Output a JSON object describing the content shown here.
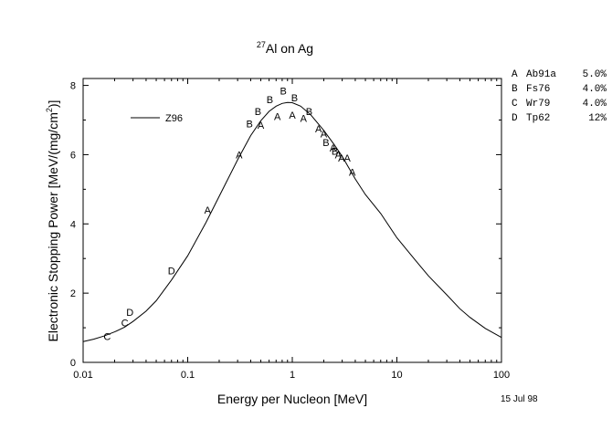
{
  "chart_data": {
    "type": "scatter",
    "title_sup": "27",
    "title_main": "Al on Ag",
    "xlabel": "Energy per Nucleon [MeV]",
    "ylabel_main": "Electronic Stopping Power [MeV/(mg/cm",
    "ylabel_sup": "2",
    "ylabel_end": ")]",
    "x_scale": "log",
    "xlim": [
      0.01,
      100
    ],
    "ylim": [
      0,
      8.2
    ],
    "x_ticks": [
      {
        "v": 0.01,
        "label": "0.01"
      },
      {
        "v": 0.1,
        "label": "0.1"
      },
      {
        "v": 1,
        "label": "1"
      },
      {
        "v": 10,
        "label": "10"
      },
      {
        "v": 100,
        "label": "100"
      }
    ],
    "y_ticks": [
      {
        "v": 0,
        "label": "0"
      },
      {
        "v": 2,
        "label": "2"
      },
      {
        "v": 4,
        "label": "4"
      },
      {
        "v": 6,
        "label": "6"
      },
      {
        "v": 8,
        "label": "8"
      }
    ],
    "date": "15 Jul 98",
    "curve": {
      "name": "Z96",
      "x": [
        0.01,
        0.0126,
        0.0158,
        0.02,
        0.025,
        0.03,
        0.04,
        0.05,
        0.07,
        0.1,
        0.15,
        0.2,
        0.3,
        0.4,
        0.5,
        0.6,
        0.7,
        0.8,
        0.9,
        1.0,
        1.2,
        1.5,
        2,
        2.5,
        3,
        4,
        5,
        7,
        10,
        15,
        20,
        30,
        40,
        50,
        70,
        100
      ],
      "y": [
        0.6,
        0.67,
        0.76,
        0.88,
        1.02,
        1.18,
        1.48,
        1.78,
        2.38,
        3.08,
        4.05,
        4.8,
        5.85,
        6.55,
        6.98,
        7.25,
        7.4,
        7.48,
        7.51,
        7.5,
        7.4,
        7.15,
        6.7,
        6.3,
        5.95,
        5.3,
        4.85,
        4.3,
        3.6,
        2.95,
        2.5,
        1.95,
        1.55,
        1.3,
        0.98,
        0.72
      ]
    },
    "points": [
      {
        "label": "A",
        "x": 0.155,
        "y": 4.4
      },
      {
        "label": "A",
        "x": 0.31,
        "y": 6.0
      },
      {
        "label": "A",
        "x": 0.5,
        "y": 6.85
      },
      {
        "label": "A",
        "x": 0.72,
        "y": 7.1
      },
      {
        "label": "A",
        "x": 1.0,
        "y": 7.15
      },
      {
        "label": "A",
        "x": 1.28,
        "y": 7.05
      },
      {
        "label": "A",
        "x": 1.78,
        "y": 6.75
      },
      {
        "label": "A",
        "x": 2.0,
        "y": 6.6
      },
      {
        "label": "A",
        "x": 2.45,
        "y": 6.2
      },
      {
        "label": "A",
        "x": 2.75,
        "y": 6.0
      },
      {
        "label": "A",
        "x": 2.95,
        "y": 5.9
      },
      {
        "label": "A",
        "x": 3.35,
        "y": 5.9
      },
      {
        "label": "A",
        "x": 3.75,
        "y": 5.5
      },
      {
        "label": "B",
        "x": 0.39,
        "y": 6.9
      },
      {
        "label": "B",
        "x": 0.47,
        "y": 7.25
      },
      {
        "label": "B",
        "x": 0.61,
        "y": 7.6
      },
      {
        "label": "B",
        "x": 0.82,
        "y": 7.85
      },
      {
        "label": "B",
        "x": 1.05,
        "y": 7.65
      },
      {
        "label": "B",
        "x": 1.45,
        "y": 7.25
      },
      {
        "label": "B",
        "x": 2.1,
        "y": 6.35
      },
      {
        "label": "B",
        "x": 2.55,
        "y": 6.1
      },
      {
        "label": "C",
        "x": 0.017,
        "y": 0.75
      },
      {
        "label": "C",
        "x": 0.025,
        "y": 1.15
      },
      {
        "label": "D",
        "x": 0.028,
        "y": 1.45
      },
      {
        "label": "D",
        "x": 0.07,
        "y": 2.65
      }
    ],
    "legend": [
      {
        "key": "A",
        "ref": "Ab91a",
        "err": "5.0%"
      },
      {
        "key": "B",
        "ref": "Fs76",
        "err": "4.0%"
      },
      {
        "key": "C",
        "ref": "Wr79",
        "err": "4.0%"
      },
      {
        "key": "D",
        "ref": "Tp62",
        "err": "12%"
      }
    ],
    "legend_placement": "right-outside",
    "line_legend_placement": "top-left",
    "grid": false,
    "colors": {
      "line": "#000000",
      "text": "#000000",
      "background": "#ffffff"
    }
  }
}
